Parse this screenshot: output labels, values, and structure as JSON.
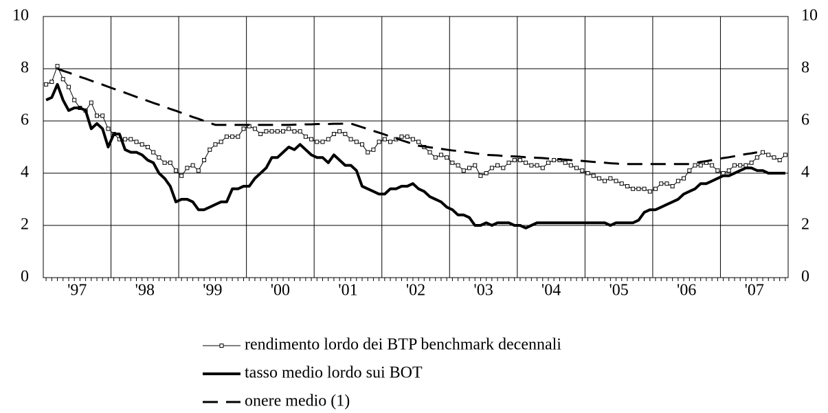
{
  "chart_data": {
    "type": "line",
    "categories": [
      null,
      null,
      null,
      null,
      null,
      null,
      "'97",
      null,
      null,
      null,
      null,
      null,
      null,
      null,
      null,
      null,
      null,
      null,
      "'98",
      null,
      null,
      null,
      null,
      null,
      null,
      null,
      null,
      null,
      null,
      null,
      "'99",
      null,
      null,
      null,
      null,
      null,
      null,
      null,
      null,
      null,
      null,
      null,
      "'00",
      null,
      null,
      null,
      null,
      null,
      null,
      null,
      null,
      null,
      null,
      null,
      "'01",
      null,
      null,
      null,
      null,
      null,
      null,
      null,
      null,
      null,
      null,
      null,
      "'02",
      null,
      null,
      null,
      null,
      null,
      null,
      null,
      null,
      null,
      null,
      null,
      "'03",
      null,
      null,
      null,
      null,
      null,
      null,
      null,
      null,
      null,
      null,
      null,
      "'04",
      null,
      null,
      null,
      null,
      null,
      null,
      null,
      null,
      null,
      null,
      null,
      "'05",
      null,
      null,
      null,
      null,
      null,
      null,
      null,
      null,
      null,
      null,
      null,
      "'06",
      null,
      null,
      null,
      null,
      null,
      null,
      null,
      null,
      null,
      null,
      null,
      "'07",
      null,
      null,
      null,
      null,
      null
    ],
    "ylim": [
      0,
      10
    ],
    "yticks": [
      0,
      2,
      4,
      6,
      8,
      10
    ],
    "y2lim": [
      0,
      10
    ],
    "y2ticks": [
      0,
      2,
      4,
      6,
      8,
      10
    ],
    "grid": true,
    "series": [
      {
        "name": "rendimento lordo dei BTP benchmark decennali",
        "color": "#000000",
        "style": "marker",
        "values": [
          7.4,
          7.5,
          8.1,
          7.6,
          7.3,
          6.8,
          6.5,
          6.4,
          6.7,
          6.2,
          6.2,
          5.7,
          5.5,
          5.3,
          5.3,
          5.3,
          5.2,
          5.1,
          5.0,
          4.8,
          4.6,
          4.4,
          4.4,
          4.1,
          3.9,
          4.2,
          4.3,
          4.1,
          4.5,
          4.9,
          5.1,
          5.2,
          5.4,
          5.4,
          5.4,
          5.7,
          5.8,
          5.7,
          5.5,
          5.6,
          5.6,
          5.6,
          5.6,
          5.7,
          5.6,
          5.6,
          5.4,
          5.3,
          5.2,
          5.2,
          5.3,
          5.5,
          5.6,
          5.5,
          5.3,
          5.2,
          5.1,
          4.8,
          4.9,
          5.2,
          5.3,
          5.2,
          5.3,
          5.4,
          5.4,
          5.3,
          5.2,
          5.0,
          4.8,
          4.6,
          4.7,
          4.6,
          4.4,
          4.3,
          4.1,
          4.2,
          4.3,
          3.9,
          4.0,
          4.2,
          4.3,
          4.2,
          4.4,
          4.5,
          4.5,
          4.4,
          4.3,
          4.3,
          4.2,
          4.4,
          4.5,
          4.5,
          4.4,
          4.3,
          4.2,
          4.1,
          4.0,
          3.9,
          3.8,
          3.7,
          3.8,
          3.7,
          3.6,
          3.5,
          3.4,
          3.4,
          3.4,
          3.3,
          3.4,
          3.6,
          3.6,
          3.5,
          3.7,
          3.8,
          4.1,
          4.3,
          4.3,
          4.4,
          4.3,
          4.1,
          4.0,
          4.1,
          4.3,
          4.3,
          4.3,
          4.4,
          4.6,
          4.8,
          4.7,
          4.6,
          4.5,
          4.7
        ]
      },
      {
        "name": "tasso medio lordo sui BOT",
        "color": "#000000",
        "style": "thick",
        "values": [
          6.8,
          6.9,
          7.4,
          6.8,
          6.4,
          6.5,
          6.5,
          6.4,
          5.7,
          5.9,
          5.7,
          5.0,
          5.5,
          5.5,
          4.9,
          4.8,
          4.8,
          4.7,
          4.5,
          4.4,
          4.0,
          3.8,
          3.5,
          2.9,
          3.0,
          3.0,
          2.9,
          2.6,
          2.6,
          2.7,
          2.8,
          2.9,
          2.9,
          3.4,
          3.4,
          3.5,
          3.5,
          3.8,
          4.0,
          4.2,
          4.6,
          4.6,
          4.8,
          5.0,
          4.9,
          5.1,
          4.9,
          4.7,
          4.6,
          4.6,
          4.4,
          4.7,
          4.5,
          4.3,
          4.3,
          4.1,
          3.5,
          3.4,
          3.3,
          3.2,
          3.2,
          3.4,
          3.4,
          3.5,
          3.5,
          3.6,
          3.4,
          3.3,
          3.1,
          3.0,
          2.9,
          2.7,
          2.6,
          2.4,
          2.4,
          2.3,
          2.0,
          2.0,
          2.1,
          2.0,
          2.1,
          2.1,
          2.1,
          2.0,
          2.0,
          1.9,
          2.0,
          2.1,
          2.1,
          2.1,
          2.1,
          2.1,
          2.1,
          2.1,
          2.1,
          2.1,
          2.1,
          2.1,
          2.1,
          2.1,
          2.0,
          2.1,
          2.1,
          2.1,
          2.1,
          2.2,
          2.5,
          2.6,
          2.6,
          2.7,
          2.8,
          2.9,
          3.0,
          3.2,
          3.3,
          3.4,
          3.6,
          3.6,
          3.7,
          3.8,
          3.9,
          3.9,
          4.0,
          4.1,
          4.2,
          4.2,
          4.1,
          4.1,
          4.0,
          4.0,
          4.0,
          4.0
        ]
      },
      {
        "name": "onere medio (1)",
        "color": "#000000",
        "style": "dashed",
        "values": [
          null,
          null,
          8.0,
          7.92,
          7.85,
          7.77,
          7.69,
          7.62,
          7.54,
          7.46,
          7.39,
          7.31,
          7.23,
          7.16,
          7.08,
          7.0,
          6.92,
          6.85,
          6.77,
          6.69,
          6.62,
          6.54,
          6.46,
          6.39,
          6.31,
          6.23,
          6.15,
          6.08,
          6.0,
          5.92,
          5.85,
          5.85,
          5.85,
          5.85,
          5.85,
          5.85,
          5.85,
          5.85,
          5.85,
          5.85,
          5.85,
          5.85,
          5.85,
          5.85,
          5.86,
          5.86,
          5.87,
          5.87,
          5.88,
          5.88,
          5.88,
          5.89,
          5.89,
          5.9,
          5.9,
          5.83,
          5.76,
          5.69,
          5.62,
          5.55,
          5.48,
          5.4,
          5.33,
          5.26,
          5.19,
          5.12,
          5.05,
          5.02,
          4.99,
          4.96,
          4.93,
          4.9,
          4.87,
          4.85,
          4.82,
          4.79,
          4.76,
          4.73,
          4.7,
          4.69,
          4.68,
          4.66,
          4.65,
          4.64,
          4.63,
          4.61,
          4.6,
          4.59,
          4.58,
          4.56,
          4.55,
          4.53,
          4.52,
          4.5,
          4.48,
          4.47,
          4.45,
          4.43,
          4.42,
          4.4,
          4.38,
          4.37,
          4.35,
          4.35,
          4.35,
          4.35,
          4.35,
          4.35,
          4.35,
          4.35,
          4.35,
          4.35,
          4.35,
          4.35,
          4.35,
          4.39,
          4.43,
          4.46,
          4.5,
          4.54,
          4.58,
          4.61,
          4.65,
          4.69,
          4.73,
          4.76,
          4.8,
          null,
          null,
          null,
          null,
          null
        ]
      }
    ]
  }
}
